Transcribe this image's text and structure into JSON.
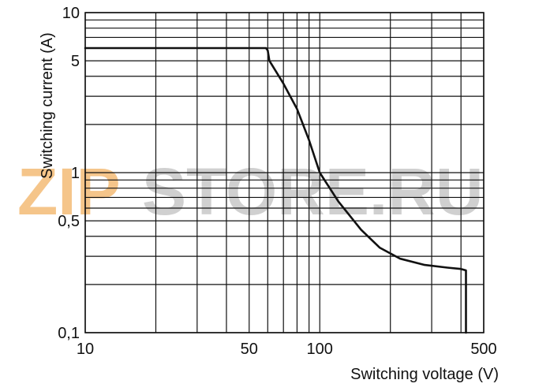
{
  "watermark": {
    "text_a": "ZIP",
    "text_b": "STORE.RU",
    "color_a": "#f5c58a",
    "color_b": "#d0d0d0"
  },
  "chart_data": {
    "type": "line",
    "title": "",
    "xlabel": "Switching voltage (V)",
    "ylabel": "Switching current (A)",
    "xscale": "log",
    "yscale": "log",
    "xlim": [
      10,
      500
    ],
    "ylim": [
      0.1,
      10
    ],
    "grid": true,
    "legend": "none",
    "line_color": "#111111",
    "grid_color": "#111111",
    "x_ticks": [
      {
        "value": 10,
        "label": "10"
      },
      {
        "value": 50,
        "label": "50"
      },
      {
        "value": 100,
        "label": "100"
      },
      {
        "value": 500,
        "label": "500"
      }
    ],
    "y_ticks": [
      {
        "value": 10,
        "label": "10"
      },
      {
        "value": 5,
        "label": "5"
      },
      {
        "value": 1,
        "label": "1"
      },
      {
        "value": 0.5,
        "label": "0,5"
      },
      {
        "value": 0.1,
        "label": "0,1"
      }
    ],
    "x_grid": [
      10,
      20,
      30,
      40,
      50,
      60,
      70,
      80,
      90,
      100,
      200,
      300,
      400,
      500
    ],
    "y_grid": [
      0.1,
      0.2,
      0.3,
      0.4,
      0.5,
      0.6,
      0.7,
      0.8,
      0.9,
      1,
      2,
      3,
      4,
      5,
      6,
      7,
      8,
      9,
      10
    ],
    "series": [
      {
        "x": [
          10,
          59,
          60,
          61,
          70,
          80,
          90,
          100,
          120,
          150,
          180,
          220,
          280,
          350,
          400,
          420,
          420
        ],
        "y": [
          6,
          6,
          5.8,
          5.0,
          3.6,
          2.5,
          1.6,
          1.0,
          0.66,
          0.44,
          0.34,
          0.29,
          0.265,
          0.255,
          0.25,
          0.245,
          0.1
        ]
      }
    ]
  }
}
